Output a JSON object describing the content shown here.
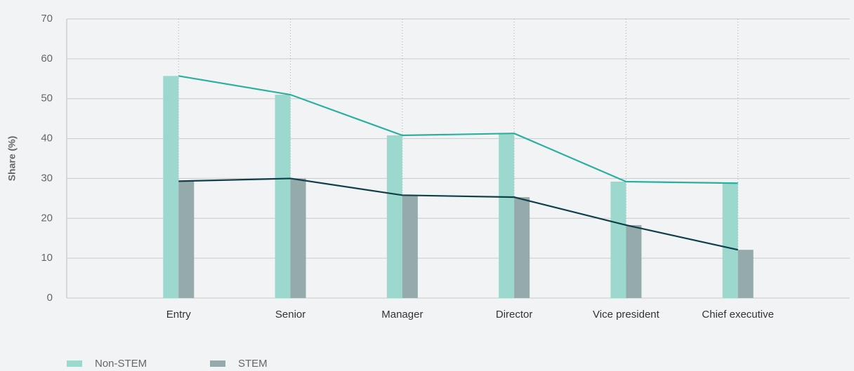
{
  "chart_data": {
    "type": "bar_line",
    "y_label": "Share (%)",
    "categories": [
      "Entry",
      "Senior",
      "Manager",
      "Director",
      "Vice president",
      "Chief executive"
    ],
    "series": [
      {
        "name": "Non-STEM",
        "color": "#9dd8ce",
        "line_color": "#2bb0a0",
        "values": [
          55.7,
          51,
          40.8,
          41.3,
          29.2,
          28.8
        ]
      },
      {
        "name": "STEM",
        "color": "#94aaab",
        "line_color": "#0e3f4a",
        "values": [
          29.3,
          30,
          25.8,
          25.3,
          18.3,
          12.1
        ]
      }
    ],
    "ylim": [
      0,
      70
    ],
    "yticks": [
      0,
      10,
      20,
      30,
      40,
      50,
      60,
      70
    ],
    "grid": true,
    "legend": "bottom-left"
  }
}
